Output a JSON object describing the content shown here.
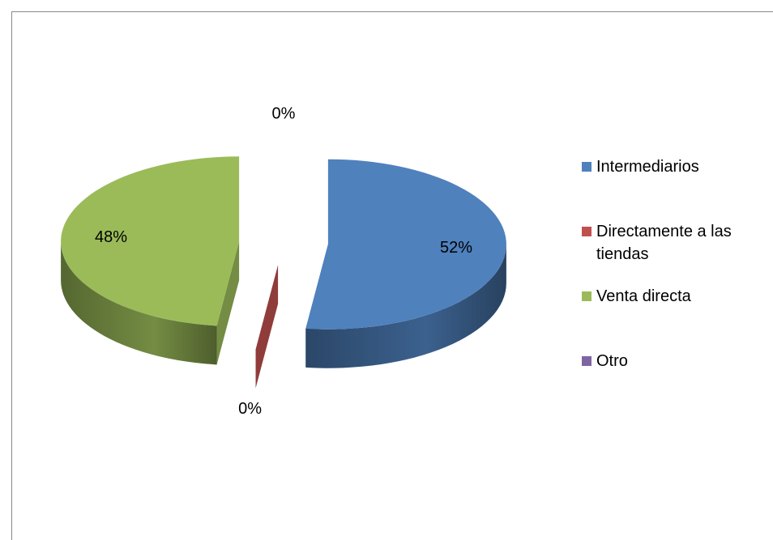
{
  "chart_data": {
    "type": "pie",
    "categories": [
      "Intermediarios",
      "Directamente a las tiendas",
      "Venta directa",
      "Otro"
    ],
    "values": [
      52,
      0,
      48,
      0
    ],
    "value_labels": [
      "52%",
      "0%",
      "48%",
      "0%"
    ],
    "colors": [
      "#4f81bd",
      "#c0504d",
      "#9bbb59",
      "#8064a2"
    ],
    "legend": "right"
  }
}
